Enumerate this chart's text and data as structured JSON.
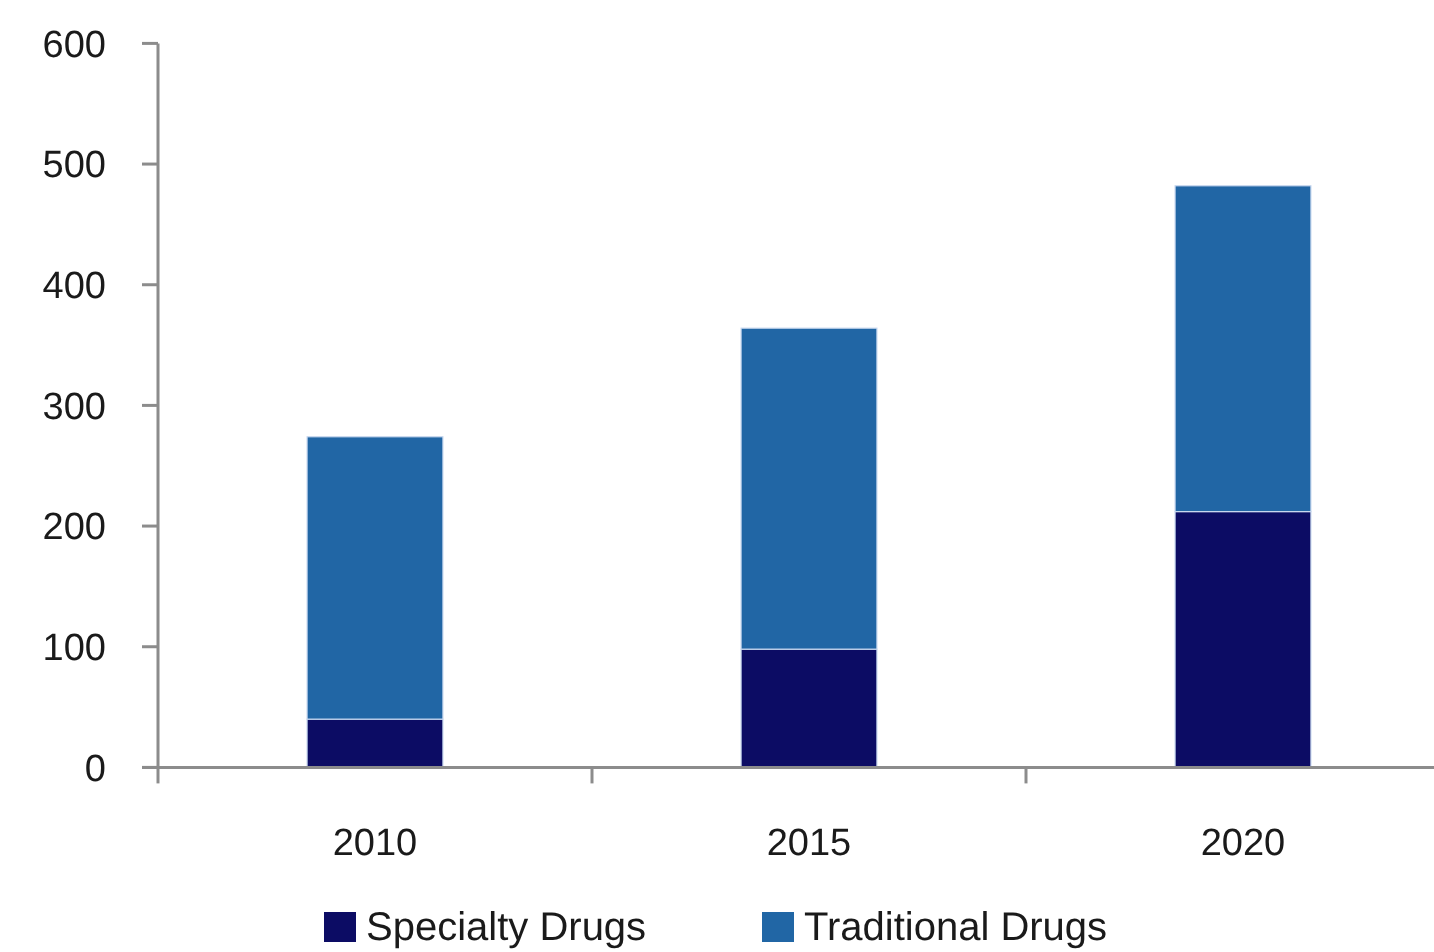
{
  "chart_data": {
    "type": "bar",
    "stacked": true,
    "categories": [
      "2010",
      "2015",
      "2020"
    ],
    "series": [
      {
        "name": "Specialty Drugs",
        "color": "#0c0c64",
        "values": [
          40,
          98,
          212
        ]
      },
      {
        "name": "Traditional Drugs",
        "color": "#2166a5",
        "values": [
          234,
          266,
          270
        ]
      }
    ],
    "ylim": [
      0,
      600
    ],
    "yticks": [
      0,
      100,
      200,
      300,
      400,
      500,
      600
    ],
    "grid": false,
    "legend": "bottom"
  }
}
